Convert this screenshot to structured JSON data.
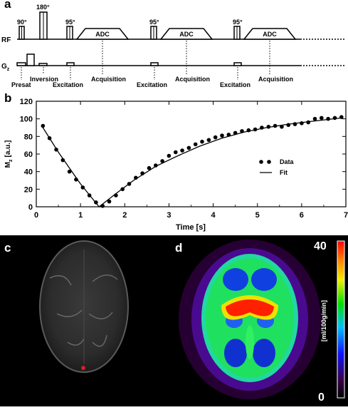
{
  "panels": {
    "a": "a",
    "b": "b",
    "c": "c",
    "d": "d"
  },
  "sequence": {
    "row_labels": {
      "rf": "RF",
      "g": "G",
      "g_sub": "z"
    },
    "flip_angles": {
      "presat": "90°",
      "inversion": "180°",
      "excitation": "95°"
    },
    "adc_label": "ADC",
    "labels": {
      "presat": "Presat",
      "inversion": "Inversion",
      "excitation": "Excitation",
      "acquisition": "Acquisition"
    },
    "excitation_blocks": 3
  },
  "chart_data": {
    "type": "scatter",
    "xlabel": "Time [s]",
    "ylabel": "M",
    "ylabel_sub": "z",
    "ylabel_unit": "[a.u.]",
    "xlim": [
      0,
      7
    ],
    "ylim": [
      0,
      120
    ],
    "xticks": [
      0,
      1,
      2,
      3,
      4,
      5,
      6,
      7
    ],
    "yticks": [
      0,
      20,
      40,
      60,
      80,
      100,
      120
    ],
    "legend": {
      "position": "right",
      "data": "Data",
      "fit": "Fit"
    },
    "series": [
      {
        "name": "Data",
        "kind": "points",
        "x": [
          0.15,
          0.3,
          0.45,
          0.6,
          0.75,
          0.9,
          1.05,
          1.2,
          1.35,
          1.5,
          1.65,
          1.8,
          1.95,
          2.1,
          2.25,
          2.4,
          2.55,
          2.7,
          2.85,
          3.0,
          3.15,
          3.3,
          3.45,
          3.6,
          3.75,
          3.9,
          4.05,
          4.2,
          4.35,
          4.5,
          4.65,
          4.8,
          4.95,
          5.1,
          5.25,
          5.4,
          5.55,
          5.7,
          5.85,
          6.0,
          6.15,
          6.3,
          6.45,
          6.6,
          6.75,
          6.9
        ],
        "y": [
          92,
          78,
          65,
          53,
          40,
          31,
          22,
          13,
          5,
          1,
          6,
          13,
          20,
          26,
          33,
          38,
          44,
          47,
          52,
          58,
          62,
          64,
          67,
          71,
          74,
          76,
          79,
          81,
          82,
          84,
          86,
          87,
          88,
          90,
          91,
          92,
          91,
          93,
          94,
          95,
          96,
          100,
          101,
          100,
          101,
          102
        ]
      },
      {
        "name": "Fit",
        "kind": "line",
        "x": [
          0.15,
          0.5,
          1.0,
          1.42,
          1.8,
          2.2,
          2.7,
          3.2,
          3.7,
          4.2,
          4.7,
          5.2,
          5.7,
          6.2,
          6.9
        ],
        "y": [
          90,
          62,
          26,
          0,
          15,
          30,
          46,
          58,
          69,
          78,
          85,
          90,
          94,
          97,
          101
        ]
      }
    ]
  },
  "map": {
    "colorbar_max": "40",
    "colorbar_min": "0",
    "colorbar_unit": "[ml/100g/min]"
  },
  "colors": {
    "fit_line": "#000000",
    "marker": "#000000",
    "roi_marker": "#d42020"
  }
}
